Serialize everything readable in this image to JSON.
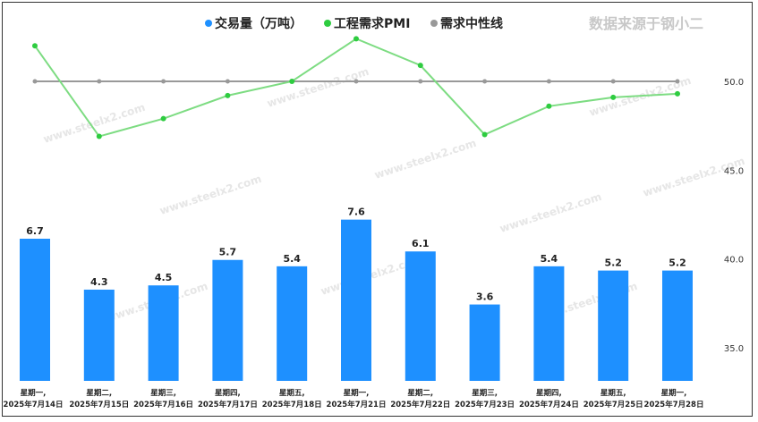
{
  "credit": "数据来源于钢小二",
  "watermark_text": "www.steelx2.com",
  "legend": [
    {
      "key": "volume",
      "label": "交易量（万吨）",
      "color": "#1e90ff"
    },
    {
      "key": "pmi",
      "label": "工程需求PMI",
      "color": "#2ecc40"
    },
    {
      "key": "neutral",
      "label": "需求中性线",
      "color": "#999999"
    }
  ],
  "chart_data": {
    "type": "bar",
    "categories": [
      [
        "星期一,",
        "2025年7月14日"
      ],
      [
        "星期二,",
        "2025年7月15日"
      ],
      [
        "星期三,",
        "2025年7月16日"
      ],
      [
        "星期四,",
        "2025年7月17日"
      ],
      [
        "星期五,",
        "2025年7月18日"
      ],
      [
        "星期一,",
        "2025年7月21日"
      ],
      [
        "星期二,",
        "2025年7月22日"
      ],
      [
        "星期三,",
        "2025年7月23日"
      ],
      [
        "星期四,",
        "2025年7月24日"
      ],
      [
        "星期五,",
        "2025年7月25日"
      ],
      [
        "星期一,",
        "2025年7月28日"
      ]
    ],
    "series": [
      {
        "name": "交易量（万吨）",
        "type": "bar",
        "color": "#1e90ff",
        "values": [
          6.7,
          4.3,
          4.5,
          5.7,
          5.4,
          7.6,
          6.1,
          3.6,
          5.4,
          5.2,
          5.2
        ]
      },
      {
        "name": "工程需求PMI",
        "type": "line",
        "axis": "right",
        "color": "#2ecc40",
        "values": [
          52.0,
          46.9,
          47.9,
          49.2,
          50.0,
          52.4,
          50.9,
          47.0,
          48.6,
          49.1,
          49.3
        ]
      },
      {
        "name": "需求中性线",
        "type": "line",
        "axis": "right",
        "color": "#999999",
        "values": [
          50,
          50,
          50,
          50,
          50,
          50,
          50,
          50,
          50,
          50,
          50
        ]
      }
    ],
    "y_right": {
      "ticks": [
        35.0,
        40.0,
        45.0,
        50.0
      ],
      "tick_labels": [
        "35.0",
        "40.0",
        "45.0",
        "50.0"
      ]
    },
    "bar_scale_max": 10,
    "legend_position": "top",
    "grid": false
  }
}
